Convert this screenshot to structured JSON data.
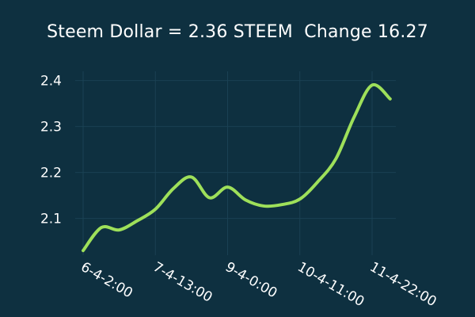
{
  "chart_data": {
    "type": "line",
    "title": "Steem Dollar = 2.36 STEEM  Change 16.27",
    "xlabel": "",
    "ylabel": "",
    "x_ticks": [
      "6-4-2:00",
      "7-4-13:00",
      "9-4-0:00",
      "10-4-11:00",
      "11-4-22:00"
    ],
    "y_ticks": [
      2.1,
      2.2,
      2.3,
      2.4
    ],
    "ylim": [
      2.02,
      2.42
    ],
    "grid": true,
    "legend": "none",
    "series": [
      {
        "color": "#9ee05a",
        "points": [
          {
            "x": "6-4-2:00",
            "y": 2.03
          },
          {
            "x": "6-4-11:00",
            "y": 2.08
          },
          {
            "x": "6-4-20:00",
            "y": 2.075
          },
          {
            "x": "7-4-5:00",
            "y": 2.095
          },
          {
            "x": "7-4-13:00",
            "y": 2.12
          },
          {
            "x": "7-4-22:00",
            "y": 2.165
          },
          {
            "x": "8-4-7:00",
            "y": 2.19
          },
          {
            "x": "8-4-16:00",
            "y": 2.145
          },
          {
            "x": "9-4-0:00",
            "y": 2.168
          },
          {
            "x": "9-4-9:00",
            "y": 2.14
          },
          {
            "x": "9-4-18:00",
            "y": 2.127
          },
          {
            "x": "10-4-3:00",
            "y": 2.13
          },
          {
            "x": "10-4-11:00",
            "y": 2.142
          },
          {
            "x": "10-4-20:00",
            "y": 2.18
          },
          {
            "x": "11-4-5:00",
            "y": 2.23
          },
          {
            "x": "11-4-14:00",
            "y": 2.32
          },
          {
            "x": "11-4-22:00",
            "y": 2.39
          },
          {
            "x": "12-4-7:00",
            "y": 2.36
          }
        ]
      }
    ]
  }
}
